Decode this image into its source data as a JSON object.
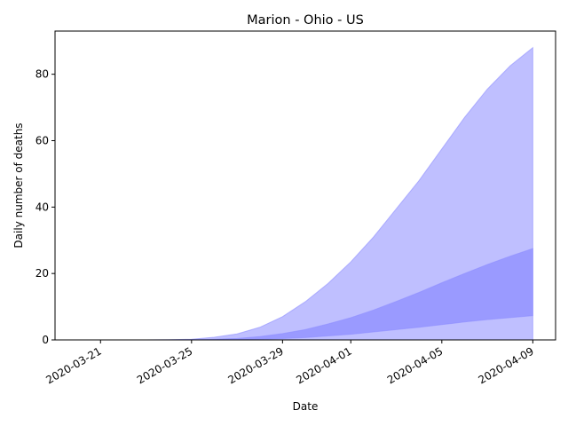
{
  "chart_data": {
    "type": "area",
    "title": "Marion - Ohio - US",
    "xlabel": "Date",
    "ylabel": "Daily number of deaths",
    "x_ticks": [
      "2020-03-21",
      "2020-03-25",
      "2020-03-29",
      "2020-04-01",
      "2020-04-05",
      "2020-04-09"
    ],
    "y_ticks": [
      0,
      20,
      40,
      60,
      80
    ],
    "xlim": [
      "2020-03-19",
      "2020-04-10"
    ],
    "ylim": [
      0,
      93
    ],
    "grid": false,
    "x": [
      "2020-03-21",
      "2020-03-22",
      "2020-03-23",
      "2020-03-24",
      "2020-03-25",
      "2020-03-26",
      "2020-03-27",
      "2020-03-28",
      "2020-03-29",
      "2020-03-30",
      "2020-03-31",
      "2020-04-01",
      "2020-04-02",
      "2020-04-03",
      "2020-04-04",
      "2020-04-05",
      "2020-04-06",
      "2020-04-07",
      "2020-04-08",
      "2020-04-09"
    ],
    "bands": [
      {
        "color": "#bfbfff",
        "lower": [
          0,
          0,
          0,
          0,
          0,
          0,
          0,
          0,
          0,
          0,
          0,
          0,
          0,
          0,
          0,
          0,
          0,
          0,
          0,
          0
        ],
        "upper": [
          0,
          0,
          0,
          0.05,
          0.2,
          0.8,
          1.8,
          3.8,
          7,
          11.5,
          17,
          23.5,
          31,
          39.5,
          48,
          57.5,
          67,
          75.5,
          82.5,
          88
        ]
      },
      {
        "color": "#9a9aff",
        "lower": [
          0,
          0,
          0,
          0,
          0,
          0,
          0.05,
          0.2,
          0.4,
          0.7,
          1.2,
          1.7,
          2.4,
          3.1,
          3.8,
          4.6,
          5.4,
          6.1,
          6.7,
          7.3
        ],
        "upper": [
          0,
          0,
          0,
          0,
          0.05,
          0.2,
          0.45,
          1.0,
          1.9,
          3.1,
          4.8,
          6.7,
          9.0,
          11.6,
          14.3,
          17.2,
          20,
          22.7,
          25.2,
          27.5
        ]
      }
    ]
  }
}
